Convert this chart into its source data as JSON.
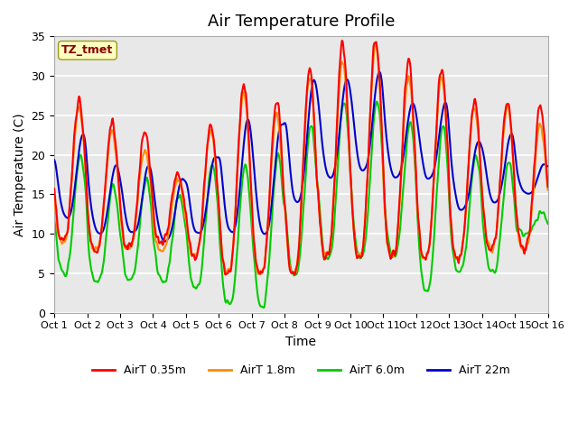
{
  "title": "Air Temperature Profile",
  "xlabel": "Time",
  "ylabel": "Air Temperature (C)",
  "annotation": "TZ_tmet",
  "annotation_color": "#8B0000",
  "annotation_bg": "#FFFFC0",
  "ylim": [
    0,
    35
  ],
  "xlim": [
    0,
    15
  ],
  "x_tick_labels": [
    "Oct 1",
    "Oct 2",
    "Oct 3",
    "Oct 4",
    "Oct 5",
    "Oct 6",
    "Oct 7",
    "Oct 8",
    "Oct 9",
    "Oct 10",
    "Oct 11",
    "Oct 12",
    "Oct 13",
    "Oct 14",
    "Oct 15",
    "Oct 16"
  ],
  "colors": {
    "AirT 0.35m": "#FF0000",
    "AirT 1.8m": "#FF8C00",
    "AirT 6.0m": "#00CC00",
    "AirT 22m": "#0000CC"
  },
  "line_width": 1.5,
  "background_color": "#FFFFFF",
  "plot_bg_color": "#E8E8E8",
  "grid_color": "#FFFFFF",
  "title_fontsize": 13,
  "label_fontsize": 10,
  "day_peaks_035": [
    27,
    24,
    23,
    18,
    24,
    29,
    27,
    31,
    34,
    35,
    32,
    31,
    27,
    27,
    26
  ],
  "day_mins_035": [
    9,
    8,
    8,
    9,
    7,
    5,
    5,
    5,
    7,
    7,
    7,
    7,
    7,
    8,
    8
  ],
  "day_peaks_18": [
    26,
    23,
    21,
    17,
    23,
    28,
    25,
    30,
    32,
    34,
    30,
    30,
    26,
    26,
    24
  ],
  "day_mins_18": [
    9,
    8,
    8,
    8,
    7,
    5,
    5,
    5,
    7,
    7,
    7,
    7,
    7,
    8,
    8
  ],
  "day_peaks_60": [
    20,
    16,
    17,
    15,
    19,
    19,
    20,
    24,
    27,
    27,
    24,
    24,
    20,
    19,
    13
  ],
  "day_mins_60": [
    5,
    4,
    4,
    4,
    3,
    1,
    1,
    5,
    7,
    7,
    7,
    3,
    5,
    5,
    10
  ],
  "day_peaks_22m": [
    23,
    19,
    19,
    17,
    20,
    25,
    24,
    30,
    30,
    31,
    27,
    27,
    22,
    23,
    19
  ],
  "day_mins_22m": [
    12,
    10,
    10,
    9,
    10,
    10,
    10,
    14,
    17,
    18,
    17,
    17,
    13,
    14,
    15
  ]
}
